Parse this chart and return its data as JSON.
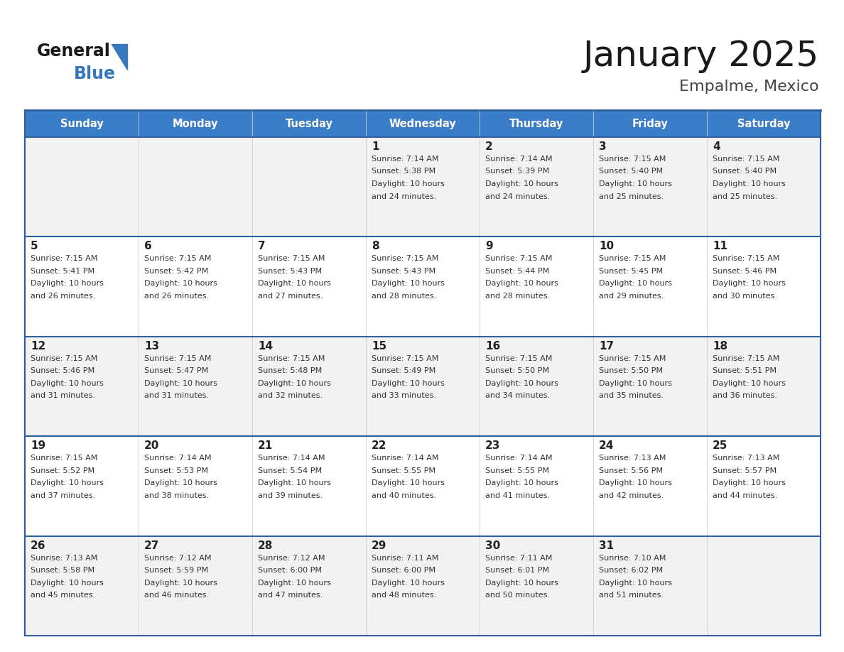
{
  "title": "January 2025",
  "subtitle": "Empalme, Mexico",
  "header_color": "#3A7DC9",
  "header_text_color": "#FFFFFF",
  "cell_bg_even": "#F2F2F2",
  "cell_bg_odd": "#FFFFFF",
  "day_names": [
    "Sunday",
    "Monday",
    "Tuesday",
    "Wednesday",
    "Thursday",
    "Friday",
    "Saturday"
  ],
  "days": [
    {
      "day": 1,
      "col": 3,
      "row": 0,
      "sunrise": "7:14 AM",
      "sunset": "5:38 PM",
      "daylight": "10 hours and 24 minutes."
    },
    {
      "day": 2,
      "col": 4,
      "row": 0,
      "sunrise": "7:14 AM",
      "sunset": "5:39 PM",
      "daylight": "10 hours and 24 minutes."
    },
    {
      "day": 3,
      "col": 5,
      "row": 0,
      "sunrise": "7:15 AM",
      "sunset": "5:40 PM",
      "daylight": "10 hours and 25 minutes."
    },
    {
      "day": 4,
      "col": 6,
      "row": 0,
      "sunrise": "7:15 AM",
      "sunset": "5:40 PM",
      "daylight": "10 hours and 25 minutes."
    },
    {
      "day": 5,
      "col": 0,
      "row": 1,
      "sunrise": "7:15 AM",
      "sunset": "5:41 PM",
      "daylight": "10 hours and 26 minutes."
    },
    {
      "day": 6,
      "col": 1,
      "row": 1,
      "sunrise": "7:15 AM",
      "sunset": "5:42 PM",
      "daylight": "10 hours and 26 minutes."
    },
    {
      "day": 7,
      "col": 2,
      "row": 1,
      "sunrise": "7:15 AM",
      "sunset": "5:43 PM",
      "daylight": "10 hours and 27 minutes."
    },
    {
      "day": 8,
      "col": 3,
      "row": 1,
      "sunrise": "7:15 AM",
      "sunset": "5:43 PM",
      "daylight": "10 hours and 28 minutes."
    },
    {
      "day": 9,
      "col": 4,
      "row": 1,
      "sunrise": "7:15 AM",
      "sunset": "5:44 PM",
      "daylight": "10 hours and 28 minutes."
    },
    {
      "day": 10,
      "col": 5,
      "row": 1,
      "sunrise": "7:15 AM",
      "sunset": "5:45 PM",
      "daylight": "10 hours and 29 minutes."
    },
    {
      "day": 11,
      "col": 6,
      "row": 1,
      "sunrise": "7:15 AM",
      "sunset": "5:46 PM",
      "daylight": "10 hours and 30 minutes."
    },
    {
      "day": 12,
      "col": 0,
      "row": 2,
      "sunrise": "7:15 AM",
      "sunset": "5:46 PM",
      "daylight": "10 hours and 31 minutes."
    },
    {
      "day": 13,
      "col": 1,
      "row": 2,
      "sunrise": "7:15 AM",
      "sunset": "5:47 PM",
      "daylight": "10 hours and 31 minutes."
    },
    {
      "day": 14,
      "col": 2,
      "row": 2,
      "sunrise": "7:15 AM",
      "sunset": "5:48 PM",
      "daylight": "10 hours and 32 minutes."
    },
    {
      "day": 15,
      "col": 3,
      "row": 2,
      "sunrise": "7:15 AM",
      "sunset": "5:49 PM",
      "daylight": "10 hours and 33 minutes."
    },
    {
      "day": 16,
      "col": 4,
      "row": 2,
      "sunrise": "7:15 AM",
      "sunset": "5:50 PM",
      "daylight": "10 hours and 34 minutes."
    },
    {
      "day": 17,
      "col": 5,
      "row": 2,
      "sunrise": "7:15 AM",
      "sunset": "5:50 PM",
      "daylight": "10 hours and 35 minutes."
    },
    {
      "day": 18,
      "col": 6,
      "row": 2,
      "sunrise": "7:15 AM",
      "sunset": "5:51 PM",
      "daylight": "10 hours and 36 minutes."
    },
    {
      "day": 19,
      "col": 0,
      "row": 3,
      "sunrise": "7:15 AM",
      "sunset": "5:52 PM",
      "daylight": "10 hours and 37 minutes."
    },
    {
      "day": 20,
      "col": 1,
      "row": 3,
      "sunrise": "7:14 AM",
      "sunset": "5:53 PM",
      "daylight": "10 hours and 38 minutes."
    },
    {
      "day": 21,
      "col": 2,
      "row": 3,
      "sunrise": "7:14 AM",
      "sunset": "5:54 PM",
      "daylight": "10 hours and 39 minutes."
    },
    {
      "day": 22,
      "col": 3,
      "row": 3,
      "sunrise": "7:14 AM",
      "sunset": "5:55 PM",
      "daylight": "10 hours and 40 minutes."
    },
    {
      "day": 23,
      "col": 4,
      "row": 3,
      "sunrise": "7:14 AM",
      "sunset": "5:55 PM",
      "daylight": "10 hours and 41 minutes."
    },
    {
      "day": 24,
      "col": 5,
      "row": 3,
      "sunrise": "7:13 AM",
      "sunset": "5:56 PM",
      "daylight": "10 hours and 42 minutes."
    },
    {
      "day": 25,
      "col": 6,
      "row": 3,
      "sunrise": "7:13 AM",
      "sunset": "5:57 PM",
      "daylight": "10 hours and 44 minutes."
    },
    {
      "day": 26,
      "col": 0,
      "row": 4,
      "sunrise": "7:13 AM",
      "sunset": "5:58 PM",
      "daylight": "10 hours and 45 minutes."
    },
    {
      "day": 27,
      "col": 1,
      "row": 4,
      "sunrise": "7:12 AM",
      "sunset": "5:59 PM",
      "daylight": "10 hours and 46 minutes."
    },
    {
      "day": 28,
      "col": 2,
      "row": 4,
      "sunrise": "7:12 AM",
      "sunset": "6:00 PM",
      "daylight": "10 hours and 47 minutes."
    },
    {
      "day": 29,
      "col": 3,
      "row": 4,
      "sunrise": "7:11 AM",
      "sunset": "6:00 PM",
      "daylight": "10 hours and 48 minutes."
    },
    {
      "day": 30,
      "col": 4,
      "row": 4,
      "sunrise": "7:11 AM",
      "sunset": "6:01 PM",
      "daylight": "10 hours and 50 minutes."
    },
    {
      "day": 31,
      "col": 5,
      "row": 4,
      "sunrise": "7:10 AM",
      "sunset": "6:02 PM",
      "daylight": "10 hours and 51 minutes."
    }
  ],
  "border_color": "#2E5F9E",
  "row_separator_color": "#2E5F9E",
  "title_color": "#1A1A1A",
  "subtitle_color": "#444444",
  "day_num_color": "#222222",
  "info_color": "#333333",
  "logo_black": "#1A1A1A",
  "logo_blue": "#3578BE"
}
